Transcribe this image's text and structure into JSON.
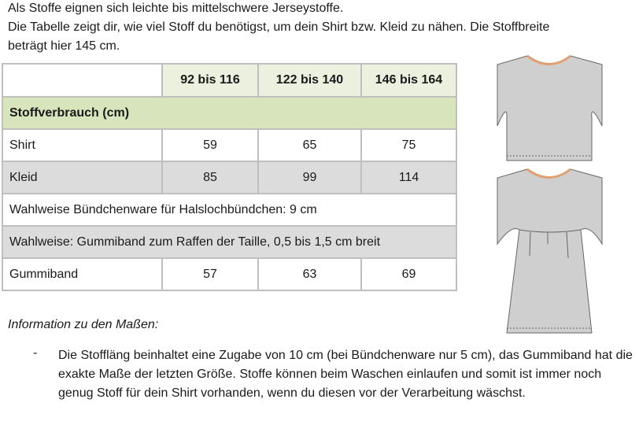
{
  "intro": [
    "Als Stoffe eignen sich leichte bis mittelschwere Jerseystoffe.",
    "Die Tabelle zeigt dir, wie viel Stoff du benötigst, um dein Shirt bzw. Kleid zu nähen. Die Stoffbreite",
    "beträgt hier 145 cm."
  ],
  "table": {
    "headers": [
      "",
      "92 bis 116",
      "122 bis 140",
      "146 bis 164"
    ],
    "section": "Stoffverbrauch (cm)",
    "rows": [
      {
        "label": "Shirt",
        "values": [
          "59",
          "65",
          "75"
        ]
      },
      {
        "label": "Kleid",
        "values": [
          "85",
          "99",
          "114"
        ]
      }
    ],
    "note1": "Wahlweise Bündchenware für Halslochbündchen: 9 cm",
    "note2": "Wahlweise: Gummiband zum Raffen der Taille, 0,5 bis 1,5 cm breit",
    "gummiband": {
      "label": "Gummiband",
      "values": [
        "57",
        "63",
        "69"
      ]
    }
  },
  "info_title": "Information zu den Maßen:",
  "bullet_marker": "-",
  "bullet_text": "Die Stoffläng beinhaltet eine Zugabe von 10 cm (bei Bündchenware nur 5 cm), das Gummiband hat die exakte Maße der letzten Größe. Stoffe können beim Waschen einlaufen und somit ist immer noch genug Stoff für dein Shirt vorhanden, wenn du diesen vor der Verarbeitung wäschst.",
  "colors": {
    "header": "#ebf1de",
    "section": "#d7e4bc",
    "gray_row": "#dcdcdc",
    "garment": "#cfcfcf",
    "neckband": "#e0a070"
  }
}
